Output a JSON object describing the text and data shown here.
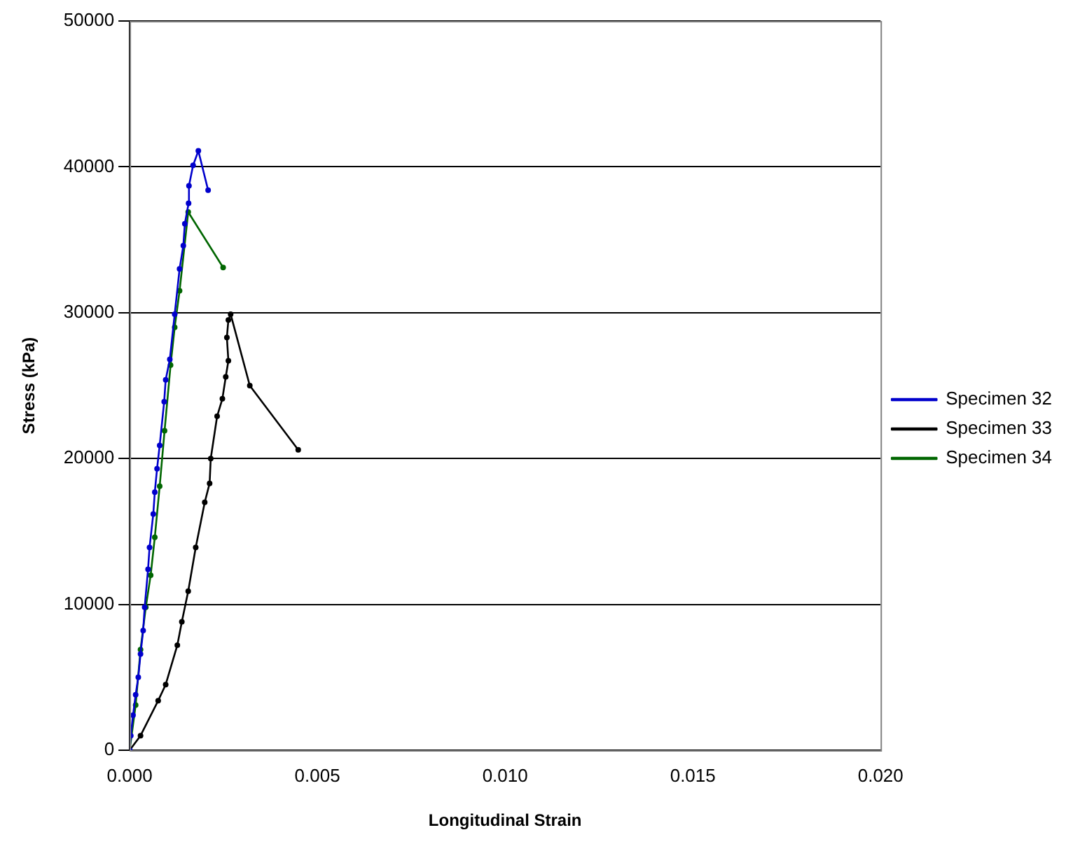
{
  "chart_data": {
    "type": "line",
    "xlabel": "Longitudinal Strain",
    "ylabel": "Stress (kPa)",
    "xlim": [
      0,
      0.02
    ],
    "xticks": [
      {
        "value": 0,
        "label": "0.000"
      },
      {
        "value": 0.005,
        "label": "0.005"
      },
      {
        "value": 0.01,
        "label": "0.010"
      },
      {
        "value": 0.015,
        "label": "0.015"
      },
      {
        "value": 0.02,
        "label": "0.020"
      }
    ],
    "ylim": [
      0,
      50000
    ],
    "yticks": [
      0,
      10000,
      20000,
      30000,
      40000,
      50000
    ],
    "grid": "y",
    "legend": "right",
    "marker": "circle",
    "line_style": "solid",
    "series": [
      {
        "name": "Specimen 32",
        "color": "#0000cc",
        "x": [
          0,
          3e-05,
          9e-05,
          0.00016,
          0.00023,
          0.00029,
          0.00036,
          0.0004,
          0.00049,
          0.00053,
          0.00063,
          0.00067,
          0.00073,
          0.0008,
          0.00092,
          0.00096,
          0.00107,
          0.0012,
          0.00133,
          0.00143,
          0.00147,
          0.00157,
          0.00158,
          0.00169,
          0.00183,
          0.00209
        ],
        "values": [
          0,
          1000,
          2400,
          3800,
          5000,
          6600,
          8200,
          9800,
          12400,
          13900,
          16200,
          17700,
          19300,
          20900,
          23900,
          25400,
          26800,
          29900,
          33000,
          34600,
          36100,
          37500,
          38700,
          40100,
          41100,
          38400
        ]
      },
      {
        "name": "Specimen 33",
        "color": "#000000",
        "x": [
          0,
          0.00029,
          0.00076,
          0.00096,
          0.00127,
          0.00139,
          0.00156,
          0.00176,
          0.002,
          0.00213,
          0.00216,
          0.00233,
          0.00247,
          0.00256,
          0.00263,
          0.00259,
          0.00263,
          0.00269,
          0.0032,
          0.00449
        ],
        "values": [
          0,
          1000,
          3400,
          4500,
          7200,
          8800,
          10900,
          13900,
          17000,
          18300,
          20000,
          22900,
          24100,
          25600,
          26700,
          28300,
          29500,
          29900,
          25000,
          20600
        ]
      },
      {
        "name": "Specimen 34",
        "color": "#006600",
        "x": [
          0,
          0.00016,
          0.00029,
          0.00043,
          0.00056,
          0.00067,
          0.0008,
          0.00093,
          0.00109,
          0.0012,
          0.00133,
          0.00156,
          0.00249
        ],
        "values": [
          0,
          3100,
          6900,
          9800,
          12000,
          14600,
          18100,
          21900,
          26400,
          29000,
          31500,
          36900,
          33100
        ]
      }
    ]
  }
}
